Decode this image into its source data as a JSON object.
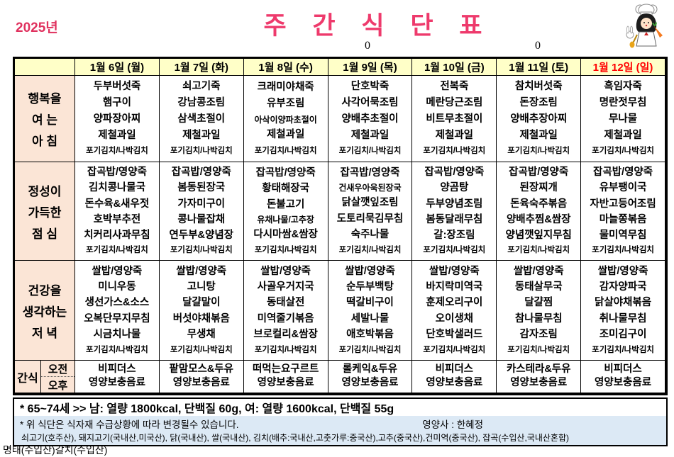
{
  "page": {
    "year": "2025년",
    "title": "주 간 식 단 표",
    "stray_zero_1": "0",
    "stray_zero_2": "0",
    "mascot_icon": "chef-girl-illustration"
  },
  "colors": {
    "title_pink": "#ee3a6c",
    "year_red": "#e0315e",
    "header_yellow": "#ffffc8",
    "label_peach": "#fbe5d6",
    "holiday_red": "#ff0000",
    "footer_blue": "#dce9f5"
  },
  "table": {
    "row_headers": {
      "breakfast": [
        "행복을",
        "여 는",
        "아 침"
      ],
      "lunch": [
        "정성이",
        "가득한",
        "점 심"
      ],
      "dinner": [
        "건강을",
        "생각하는",
        "저 녁"
      ],
      "snack": "간식",
      "snack_am": "오전",
      "snack_pm": "오후"
    },
    "days": [
      {
        "label": "1월 6일 (월)",
        "holiday": false,
        "breakfast": {
          "items": [
            "두부버섯죽",
            "햄구이",
            "양파장아찌",
            "제철과일"
          ],
          "kimchi": "포기김치/나박김치"
        },
        "lunch": {
          "items": [
            "잡곡밥/영양죽",
            "김치콩나물국",
            "돈수육&새우젓",
            "호박부추전",
            "치커리사과무침"
          ],
          "kimchi": "포기김치/나박김치"
        },
        "dinner": {
          "items": [
            "쌀밥/영양죽",
            "미니우동",
            "생선가스&소스",
            "오복단무지무침",
            "시금치나물"
          ],
          "kimchi": "포기김치/나박김치"
        },
        "snack": {
          "am": "비피더스",
          "pm": "영양보충음료"
        }
      },
      {
        "label": "1월 7일 (화)",
        "holiday": false,
        "breakfast": {
          "items": [
            "쇠고기죽",
            "강남콩조림",
            "삼색초절이",
            "제철과일"
          ],
          "kimchi": "포기김치/나박김치"
        },
        "lunch": {
          "items": [
            "잡곡밥/영양죽",
            "봄동된장국",
            "가자미구이",
            "콩나물잡채",
            "연두부&양념장"
          ],
          "kimchi": "포기김치/나박김치"
        },
        "dinner": {
          "items": [
            "쌀밥/영양죽",
            "고니탕",
            "달걀말이",
            "버섯야채볶음",
            "무생채"
          ],
          "kimchi": "포기김치/나박김치"
        },
        "snack": {
          "am": "팥맘모스&두유",
          "pm": "영양보충음료"
        }
      },
      {
        "label": "1월 8일 (수)",
        "holiday": false,
        "breakfast": {
          "items": [
            "크래미야채죽",
            "유부조림",
            "아삭이양파초절이",
            "제철과일"
          ],
          "kimchi": "포기김치/나박김치"
        },
        "lunch": {
          "items": [
            "잡곡밥/영양죽",
            "황태해장국",
            "돈불고기",
            "유채나물/고추장",
            "다시마쌈&쌈장"
          ],
          "kimchi": "포기김치/나박김치"
        },
        "dinner": {
          "items": [
            "쌀밥/영양죽",
            "사골우거지국",
            "동태살전",
            "미역줄기볶음",
            "브로컬리&쌈장"
          ],
          "kimchi": "포기김치/나박김치"
        },
        "snack": {
          "am": "떠먹는요구르트",
          "pm": "영양보충음료"
        }
      },
      {
        "label": "1월 9일 (목)",
        "holiday": false,
        "breakfast": {
          "items": [
            "단호박죽",
            "사각어묵조림",
            "양배추초절이",
            "제철과일"
          ],
          "kimchi": "포기김치/나박김치"
        },
        "lunch": {
          "items": [
            "잡곡밥/영양죽",
            "건새우아욱된장국",
            "닭살깻잎조림",
            "도토리묵김무침",
            "숙주나물"
          ],
          "kimchi": "포기김치/나박김치"
        },
        "dinner": {
          "items": [
            "쌀밥/영양죽",
            "순두부백탕",
            "떡갈비구이",
            "세발나물",
            "애호박볶음"
          ],
          "kimchi": "포기김치/나박김치"
        },
        "snack": {
          "am": "롤케익&두유",
          "pm": "영양보충음료"
        }
      },
      {
        "label": "1월 10일 (금)",
        "holiday": false,
        "breakfast": {
          "items": [
            "전복죽",
            "메란당근조림",
            "비트무초절이",
            "제철과일"
          ],
          "kimchi": "포기김치/나박김치"
        },
        "lunch": {
          "items": [
            "잡곡밥/영양죽",
            "양곰탕",
            "두부양념조림",
            "봄동달래무침",
            "갈:장조림"
          ],
          "kimchi": "포기김치/나박김치"
        },
        "dinner": {
          "items": [
            "쌀밥/영양죽",
            "바지락미역국",
            "훈제오리구이",
            "오이생채",
            "단호박샐러드"
          ],
          "kimchi": "포기김치/나박김치"
        },
        "snack": {
          "am": "비피더스",
          "pm": "영양보충음료"
        }
      },
      {
        "label": "1월 11일 (토)",
        "holiday": false,
        "breakfast": {
          "items": [
            "참치버섯죽",
            "돈장조림",
            "양배추장아찌",
            "제철과일"
          ],
          "kimchi": "포기김치/나박김치"
        },
        "lunch": {
          "items": [
            "잡곡밥/영양죽",
            "된장찌개",
            "돈육숙주볶음",
            "양배추찜&쌈장",
            "양념깻잎지무침"
          ],
          "kimchi": "포기김치/나박김치"
        },
        "dinner": {
          "items": [
            "쌀밥/영양죽",
            "동태살무국",
            "달걀찜",
            "참나물무침",
            "감자조림"
          ],
          "kimchi": "포기김치/나박김치"
        },
        "snack": {
          "am": "카스테라&두유",
          "pm": "영양보충음료"
        }
      },
      {
        "label": "1월 12일 (일)",
        "holiday": true,
        "breakfast": {
          "items": [
            "흑임자죽",
            "명란젓무침",
            "무나물",
            "제철과일"
          ],
          "kimchi": "포기김치/나박김치"
        },
        "lunch": {
          "items": [
            "잡곡밥/영양죽",
            "유부팽이국",
            "자반고등어조림",
            "마늘쫑볶음",
            "물미역무침"
          ],
          "kimchi": "포기김치/나박김치"
        },
        "dinner": {
          "items": [
            "쌀밥/영양죽",
            "감자양파국",
            "닭살야채볶음",
            "취나물무침",
            "조미김구이"
          ],
          "kimchi": "포기김치/나박김치"
        },
        "snack": {
          "am": "비피더스",
          "pm": "영양보충음료"
        }
      }
    ]
  },
  "footer": {
    "nutrition_note": "* 65~74세 >> 남: 열량 1800kcal, 단백질 60g, 여: 열량 1600kcal, 단백질 55g",
    "change_note": "* 위 식단은 식자재 수급상황에 따라 변경될수 있습니다.",
    "dietitian": "영양사 : 한혜정",
    "origin_note": "쇠고기(호주산), 돼지고기(국내산,미국산), 닭(국내산), 쌀(국내산), 김치(배추:국내산,고춧가루:중국산),고추(중국산),건미역(중국산), 잡곡(수입산,국내산혼합)",
    "origin_note_overflow": "명태(수입산)갈치(수입산)"
  }
}
